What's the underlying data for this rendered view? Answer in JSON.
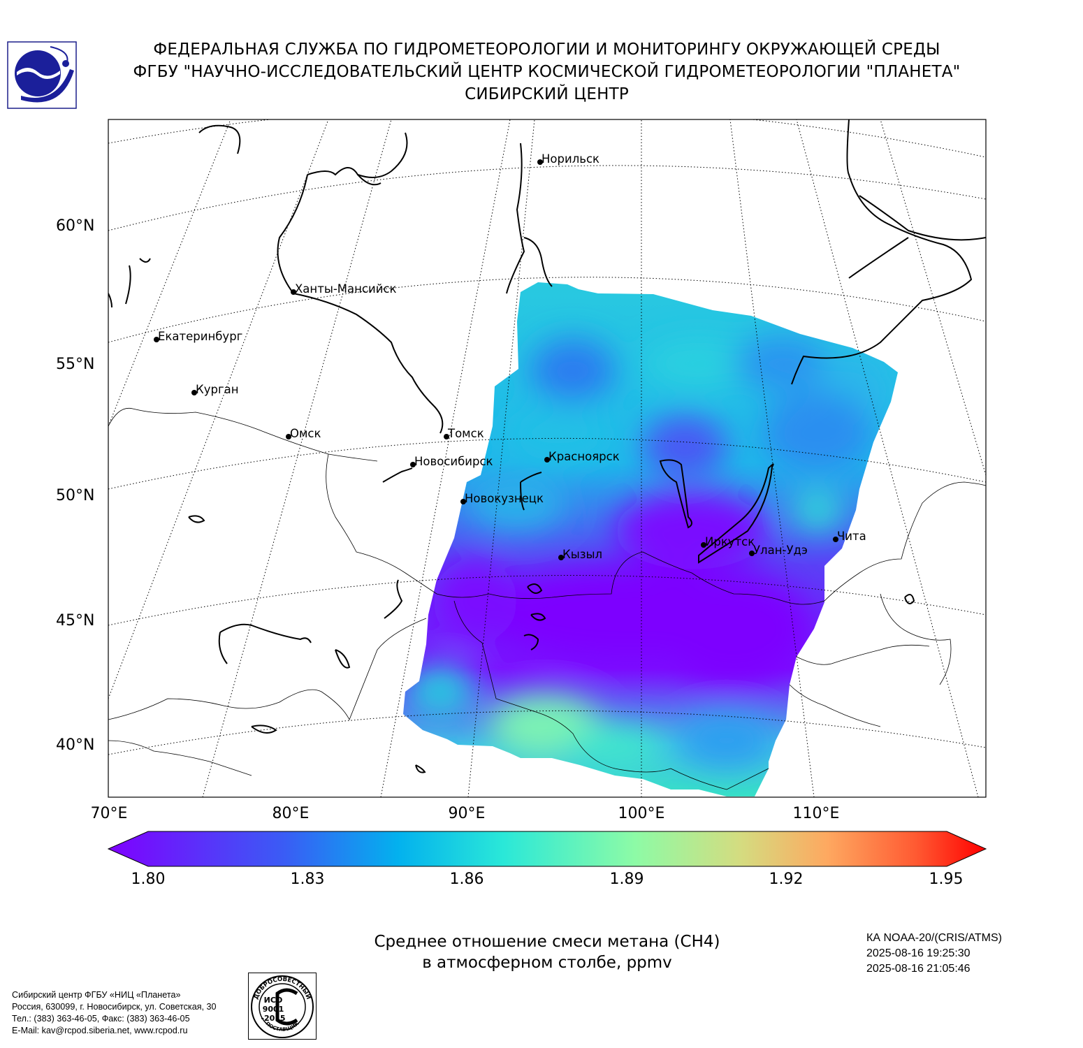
{
  "header": {
    "line1": "ФЕДЕРАЛЬНАЯ СЛУЖБА ПО ГИДРОМЕТЕОРОЛОГИИ И МОНИТОРИНГУ ОКРУЖАЮЩЕЙ СРЕДЫ",
    "line2": "ФГБУ \"НАУЧНО-ИССЛЕДОВАТЕЛЬСКИЙ ЦЕНТР КОСМИЧЕСКОЙ ГИДРОМЕТЕОРОЛОГИИ \"ПЛАНЕТА\"",
    "line3": "СИБИРСКИЙ ЦЕНТР"
  },
  "map": {
    "lat_labels": [
      "60°N",
      "55°N",
      "50°N",
      "45°N",
      "40°N"
    ],
    "lon_labels": [
      "70°E",
      "80°E",
      "90°E",
      "100°E",
      "110°E"
    ],
    "cities": [
      {
        "name": "Норильск"
      },
      {
        "name": "Ханты-Мансийск"
      },
      {
        "name": "Екатеринбург"
      },
      {
        "name": "Курган"
      },
      {
        "name": "Омск"
      },
      {
        "name": "Томск"
      },
      {
        "name": "Новосибирск"
      },
      {
        "name": "Красноярск"
      },
      {
        "name": "Новокузнецк"
      },
      {
        "name": "Кызыл"
      },
      {
        "name": "Иркутск"
      },
      {
        "name": "Улан-Удэ"
      },
      {
        "name": "Чита"
      }
    ]
  },
  "colorbar": {
    "ticks": [
      "1.80",
      "1.83",
      "1.86",
      "1.89",
      "1.92",
      "1.95"
    ],
    "min": 1.8,
    "max": 1.95,
    "colormap": "rainbow",
    "extend": "both"
  },
  "caption": {
    "line1": "Среднее отношение смеси метана (CH4)",
    "line2": "в атмосферном столбе, ppmv"
  },
  "satellite": {
    "name": "КА NOAA-20/(CRIS/ATMS)",
    "time_start": "2025-08-16 19:25:30",
    "time_end": "2025-08-16 21:05:46"
  },
  "footer": {
    "line1": "Сибирский центр ФГБУ «НИЦ «Планета»",
    "line2": "Россия, 630099, г. Новосибирск, ул. Советская, 30",
    "line3": "Тел.: (383) 363-46-05, Факс: (383) 363-46-05",
    "line4": "E-Mail: kav@rcpod.siberia.net, www.rcpod.ru"
  },
  "iso_stamp": {
    "arc_top": "ДОБРОСОВЕСТНЫЙ",
    "l1": "ИСО",
    "l2": "9001",
    "l3": "-2015",
    "arc_bottom": "ПОСТАВЩИК"
  }
}
